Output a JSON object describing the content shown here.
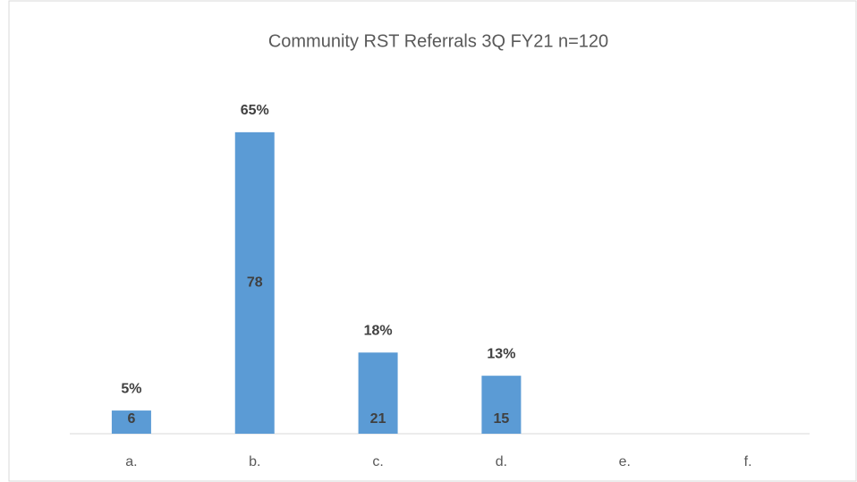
{
  "chart_data": {
    "type": "bar",
    "title": "Community RST Referrals   3Q FY21 n=120",
    "categories": [
      "a.",
      "b.",
      "c.",
      "d.",
      "e.",
      "f."
    ],
    "values": [
      6,
      78,
      21,
      15,
      null,
      null
    ],
    "percent_labels": [
      "5%",
      "65%",
      "18%",
      "13%",
      null,
      null
    ],
    "color": "#5b9bd5",
    "ylim": [
      0,
      90
    ]
  }
}
